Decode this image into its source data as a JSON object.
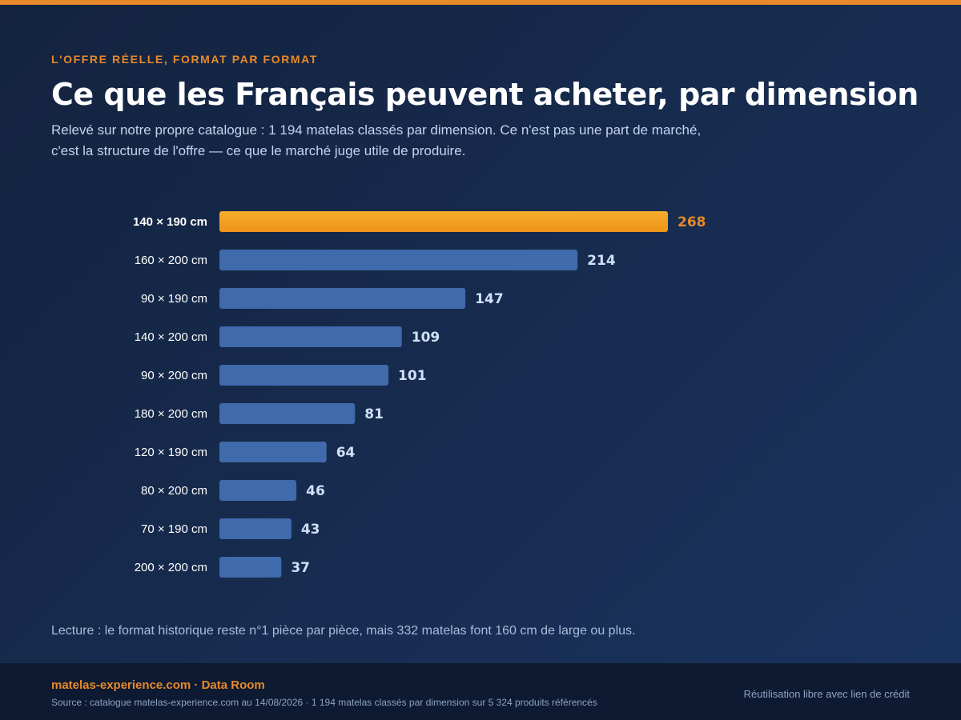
{
  "header": {
    "kicker": "L'OFFRE RÉELLE, FORMAT PAR FORMAT",
    "title": "Ce que les Français peuvent acheter, par dimension",
    "subtitle": "Relevé sur notre propre catalogue : 1 194 matelas classés par dimension. Ce n'est pas une part de marché, c'est la structure de l'offre — ce que le marché juge utile de produire."
  },
  "chart_data": {
    "type": "bar",
    "orientation": "horizontal",
    "categories": [
      "140 × 190 cm",
      "160 × 200 cm",
      "90 × 190 cm",
      "140 × 200 cm",
      "90 × 200 cm",
      "180 × 200 cm",
      "120 × 190 cm",
      "80 × 200 cm",
      "70 × 190 cm",
      "200 × 200 cm"
    ],
    "values": [
      268,
      214,
      147,
      109,
      101,
      81,
      64,
      46,
      43,
      37
    ],
    "highlight_index": 0,
    "title": "",
    "xlabel": "",
    "ylabel": "",
    "xlim": [
      0,
      268
    ],
    "grid": false,
    "legend": "none",
    "colors": {
      "highlight": "#f3a020",
      "highlight_label": "#e8892a",
      "bar": "#3f6aab",
      "value_label": "#cfe0f7",
      "category_label": "#ffffff"
    }
  },
  "reading": "Lecture : le format historique reste n°1 pièce par pièce, mais 332 matelas font 160 cm de large ou plus.",
  "footer": {
    "brand": "matelas-experience.com · Data Room",
    "source": "Source : catalogue matelas-experience.com au 14/08/2026 · 1 194 matelas classés par dimension sur 5 324 produits référencés",
    "license": "Réutilisation libre avec lien de crédit"
  }
}
